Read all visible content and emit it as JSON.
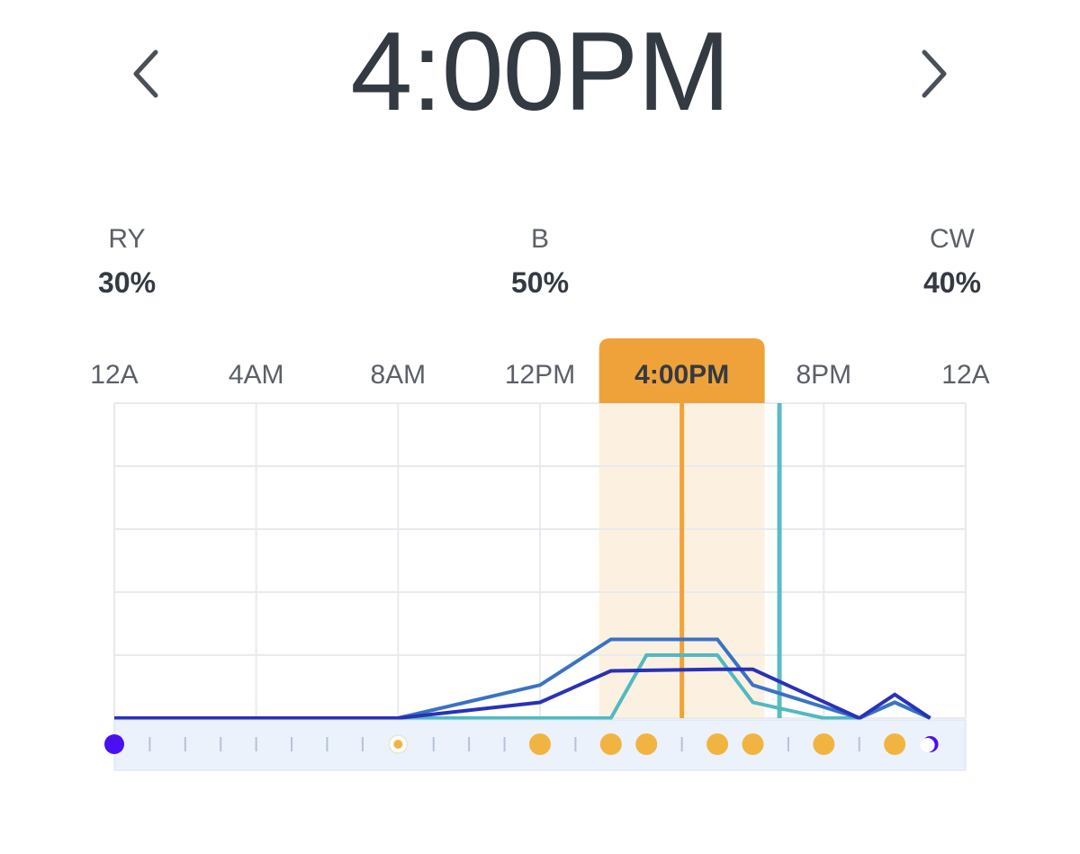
{
  "header": {
    "current_time": "4:00PM",
    "prev_icon": "chevron-left-icon",
    "next_icon": "chevron-right-icon"
  },
  "channels": [
    {
      "name": "RY",
      "value": "30%"
    },
    {
      "name": "B",
      "value": "50%"
    },
    {
      "name": "CW",
      "value": "40%"
    }
  ],
  "colors": {
    "selected": "#f0a23a",
    "selected_band": "#fcf1e0",
    "now_line": "#5bbcc3",
    "series_ry": "#2832b8",
    "series_b": "#3a72c4",
    "series_cw": "#52b8c2",
    "grid": "#e8eaee",
    "timeline_strip": "#ebf2fb",
    "dot_orange": "#f2b441",
    "dot_night": "#4a10f0"
  },
  "chart_data": {
    "type": "line",
    "x_labels": [
      "12A",
      "4AM",
      "8AM",
      "12PM",
      "4:00PM",
      "8PM",
      "12A"
    ],
    "xlim": [
      0,
      24
    ],
    "ylim": [
      0,
      100
    ],
    "selected_time_label": "4:00PM",
    "selected_hour": 16,
    "now_hour": 18.75,
    "series": [
      {
        "name": "RY",
        "color": "#2832b8",
        "points": [
          [
            0,
            0
          ],
          [
            8,
            0
          ],
          [
            12,
            5
          ],
          [
            14,
            15
          ],
          [
            17,
            15.5
          ],
          [
            18,
            15.5
          ],
          [
            21,
            0
          ],
          [
            22,
            7.5
          ],
          [
            23,
            0
          ]
        ]
      },
      {
        "name": "B",
        "color": "#3a72c4",
        "points": [
          [
            0,
            0
          ],
          [
            8,
            0
          ],
          [
            12,
            10.5
          ],
          [
            14,
            25
          ],
          [
            17,
            25
          ],
          [
            18,
            10.5
          ],
          [
            21,
            0
          ],
          [
            22,
            5
          ],
          [
            23,
            0
          ]
        ]
      },
      {
        "name": "CW",
        "color": "#52b8c2",
        "points": [
          [
            0,
            0
          ],
          [
            14,
            0
          ],
          [
            15,
            20
          ],
          [
            17,
            20
          ],
          [
            18,
            5
          ],
          [
            20,
            0
          ],
          [
            21,
            0
          ],
          [
            22,
            5
          ],
          [
            23,
            0
          ]
        ]
      }
    ],
    "timeline_markers": [
      {
        "hour": 0,
        "type": "night"
      },
      {
        "hour": 8,
        "type": "sunrise"
      },
      {
        "hour": 12,
        "type": "dot"
      },
      {
        "hour": 14,
        "type": "dot"
      },
      {
        "hour": 15,
        "type": "dot"
      },
      {
        "hour": 17,
        "type": "dot"
      },
      {
        "hour": 18,
        "type": "dot"
      },
      {
        "hour": 20,
        "type": "dot"
      },
      {
        "hour": 22,
        "type": "dot"
      },
      {
        "hour": 23,
        "type": "moon"
      }
    ]
  }
}
